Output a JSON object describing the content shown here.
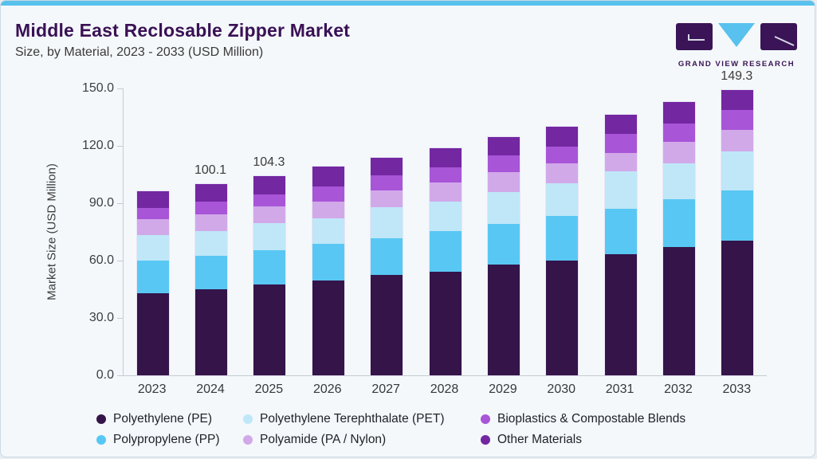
{
  "header": {
    "title": "Middle East Reclosable Zipper Market",
    "subtitle": "Size, by Material, 2023 - 2033 (USD Million)",
    "brand_name": "GRAND VIEW RESEARCH"
  },
  "logo_colors": {
    "block": "#3a1456",
    "triangle": "#58c1ee"
  },
  "chart_data": {
    "type": "bar",
    "stacked": true,
    "title": "Middle East Reclosable Zipper Market Size, by Material, 2023 - 2033 (USD Million)",
    "xlabel": "",
    "ylabel": "Market Size (USD Million)",
    "ylim": [
      0,
      150
    ],
    "yticks": [
      "0.0",
      "30.0",
      "60.0",
      "90.0",
      "120.0",
      "150.0"
    ],
    "ytick_values": [
      0,
      30,
      60,
      90,
      120,
      150
    ],
    "grid": false,
    "legend_position": "bottom",
    "categories": [
      "2023",
      "2024",
      "2025",
      "2026",
      "2027",
      "2028",
      "2029",
      "2030",
      "2031",
      "2032",
      "2033"
    ],
    "series": [
      {
        "name": "Polyethylene (PE)",
        "color": "#341449",
        "values": [
          43.1,
          45.2,
          47.3,
          49.4,
          52.6,
          54.3,
          57.8,
          60.0,
          63.3,
          67.0,
          70.4
        ]
      },
      {
        "name": "Polypropylene (PP)",
        "color": "#59c7f3",
        "values": [
          17.1,
          17.3,
          18.3,
          19.4,
          19.0,
          21.1,
          21.2,
          23.2,
          23.8,
          24.9,
          26.1
        ]
      },
      {
        "name": "Polyethylene Terephthalate (PET)",
        "color": "#bfe7f8",
        "values": [
          13.1,
          12.9,
          14.1,
          13.4,
          16.2,
          15.5,
          16.9,
          17.3,
          19.4,
          19.0,
          20.4
        ]
      },
      {
        "name": "Polyamide (PA / Nylon)",
        "color": "#d1a9e9",
        "values": [
          8.5,
          8.8,
          8.7,
          8.7,
          8.8,
          9.9,
          10.2,
          10.4,
          9.6,
          11.3,
          11.3
        ]
      },
      {
        "name": "Bioplastics & Compostable Blends",
        "color": "#a855d8",
        "values": [
          5.9,
          6.7,
          6.0,
          7.8,
          8.0,
          8.1,
          8.8,
          8.9,
          10.1,
          9.3,
          10.5
        ]
      },
      {
        "name": "Other Materials",
        "color": "#7327a1",
        "values": [
          8.4,
          9.2,
          9.9,
          10.4,
          9.3,
          10.0,
          9.5,
          10.3,
          10.2,
          11.5,
          10.6
        ]
      }
    ],
    "totals": [
      96.1,
      100.1,
      104.3,
      109.1,
      113.9,
      118.9,
      124.4,
      130.1,
      136.4,
      143.0,
      149.3
    ],
    "bar_labels": {
      "2024": "100.1",
      "2025": "104.3",
      "2033": "149.3"
    },
    "legend_display_order_row_major": [
      0,
      2,
      4,
      1,
      3,
      5
    ]
  }
}
